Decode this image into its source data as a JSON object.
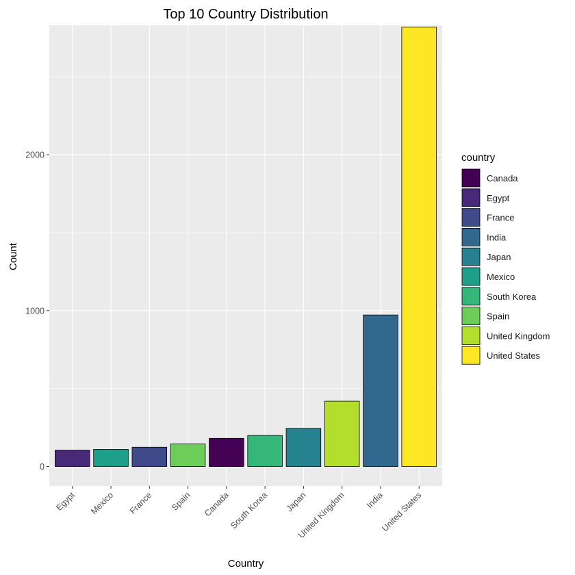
{
  "chart_data": {
    "type": "bar",
    "title": "Top 10 Country Distribution",
    "xlabel": "Country",
    "ylabel": "Count",
    "ylim": [
      -125,
      2830
    ],
    "yticks": [
      0,
      1000,
      2000
    ],
    "grid": true,
    "categories": [
      "Egypt",
      "Mexico",
      "France",
      "Spain",
      "Canada",
      "South Korea",
      "Japan",
      "United Kingdom",
      "India",
      "United States"
    ],
    "values": [
      105,
      110,
      124,
      145,
      181,
      199,
      245,
      419,
      972,
      2818
    ],
    "bar_colors": [
      "#482878",
      "#1F9E89",
      "#3E4A89",
      "#6DCD59",
      "#440154",
      "#35B779",
      "#26828E",
      "#B4DE2C",
      "#31688E",
      "#FDE725"
    ],
    "legend": {
      "title": "country",
      "position": "right",
      "items": [
        {
          "label": "Canada",
          "color": "#440154"
        },
        {
          "label": "Egypt",
          "color": "#482878"
        },
        {
          "label": "France",
          "color": "#3E4A89"
        },
        {
          "label": "India",
          "color": "#31688E"
        },
        {
          "label": "Japan",
          "color": "#26828E"
        },
        {
          "label": "Mexico",
          "color": "#1F9E89"
        },
        {
          "label": "South Korea",
          "color": "#35B779"
        },
        {
          "label": "Spain",
          "color": "#6DCD59"
        },
        {
          "label": "United Kingdom",
          "color": "#B4DE2C"
        },
        {
          "label": "United States",
          "color": "#FDE725"
        }
      ]
    },
    "panel_color": "#EBEBEB",
    "grid_color": "#FFFFFF"
  }
}
